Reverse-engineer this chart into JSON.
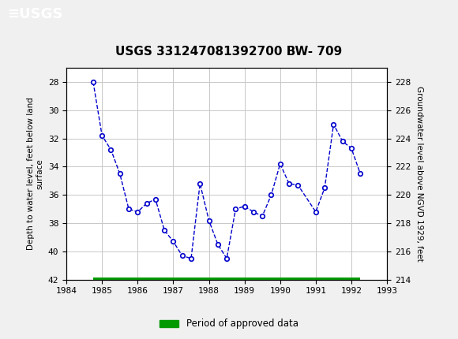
{
  "title": "USGS 331247081392700 BW- 709",
  "ylabel_left": "Depth to water level, feet below land\nsurface",
  "ylabel_right": "Groundwater level above NGVD 1929, feet",
  "xlim": [
    1984,
    1993
  ],
  "ylim_left": [
    42,
    27
  ],
  "ylim_right": [
    214,
    229
  ],
  "xticks": [
    1984,
    1985,
    1986,
    1987,
    1988,
    1989,
    1990,
    1991,
    1992,
    1993
  ],
  "yticks_left": [
    28,
    30,
    32,
    34,
    36,
    38,
    40,
    42
  ],
  "yticks_right": [
    228,
    226,
    224,
    222,
    220,
    218,
    216,
    214
  ],
  "x_data": [
    1984.75,
    1985.0,
    1985.25,
    1985.5,
    1985.75,
    1986.0,
    1986.25,
    1986.5,
    1986.75,
    1987.0,
    1987.25,
    1987.5,
    1987.75,
    1988.0,
    1988.25,
    1988.5,
    1988.75,
    1989.0,
    1989.25,
    1989.5,
    1989.75,
    1990.0,
    1990.25,
    1990.5,
    1991.0,
    1991.25,
    1991.5,
    1991.75,
    1992.0,
    1992.25
  ],
  "y_data": [
    28.0,
    31.8,
    32.8,
    34.5,
    37.0,
    37.2,
    36.6,
    36.3,
    38.5,
    39.3,
    40.3,
    40.5,
    35.2,
    37.8,
    39.5,
    40.5,
    37.0,
    36.8,
    37.2,
    37.5,
    36.0,
    33.8,
    35.2,
    35.3,
    37.2,
    35.5,
    31.0,
    32.2,
    32.7,
    34.5
  ],
  "line_color": "#0000cc",
  "marker_color": "#0000cc",
  "marker_face": "white",
  "line_style": "--",
  "marker": "o",
  "marker_size": 4,
  "approved_bar_x_start": 1984.75,
  "approved_bar_x_end": 1992.25,
  "approved_bar_color": "#009900",
  "approved_bar_height": 0.35,
  "legend_label": "Period of approved data",
  "header_color": "#006633",
  "bg_color": "#f0f0f0",
  "plot_bg_color": "#ffffff",
  "grid_color": "#c8c8c8"
}
